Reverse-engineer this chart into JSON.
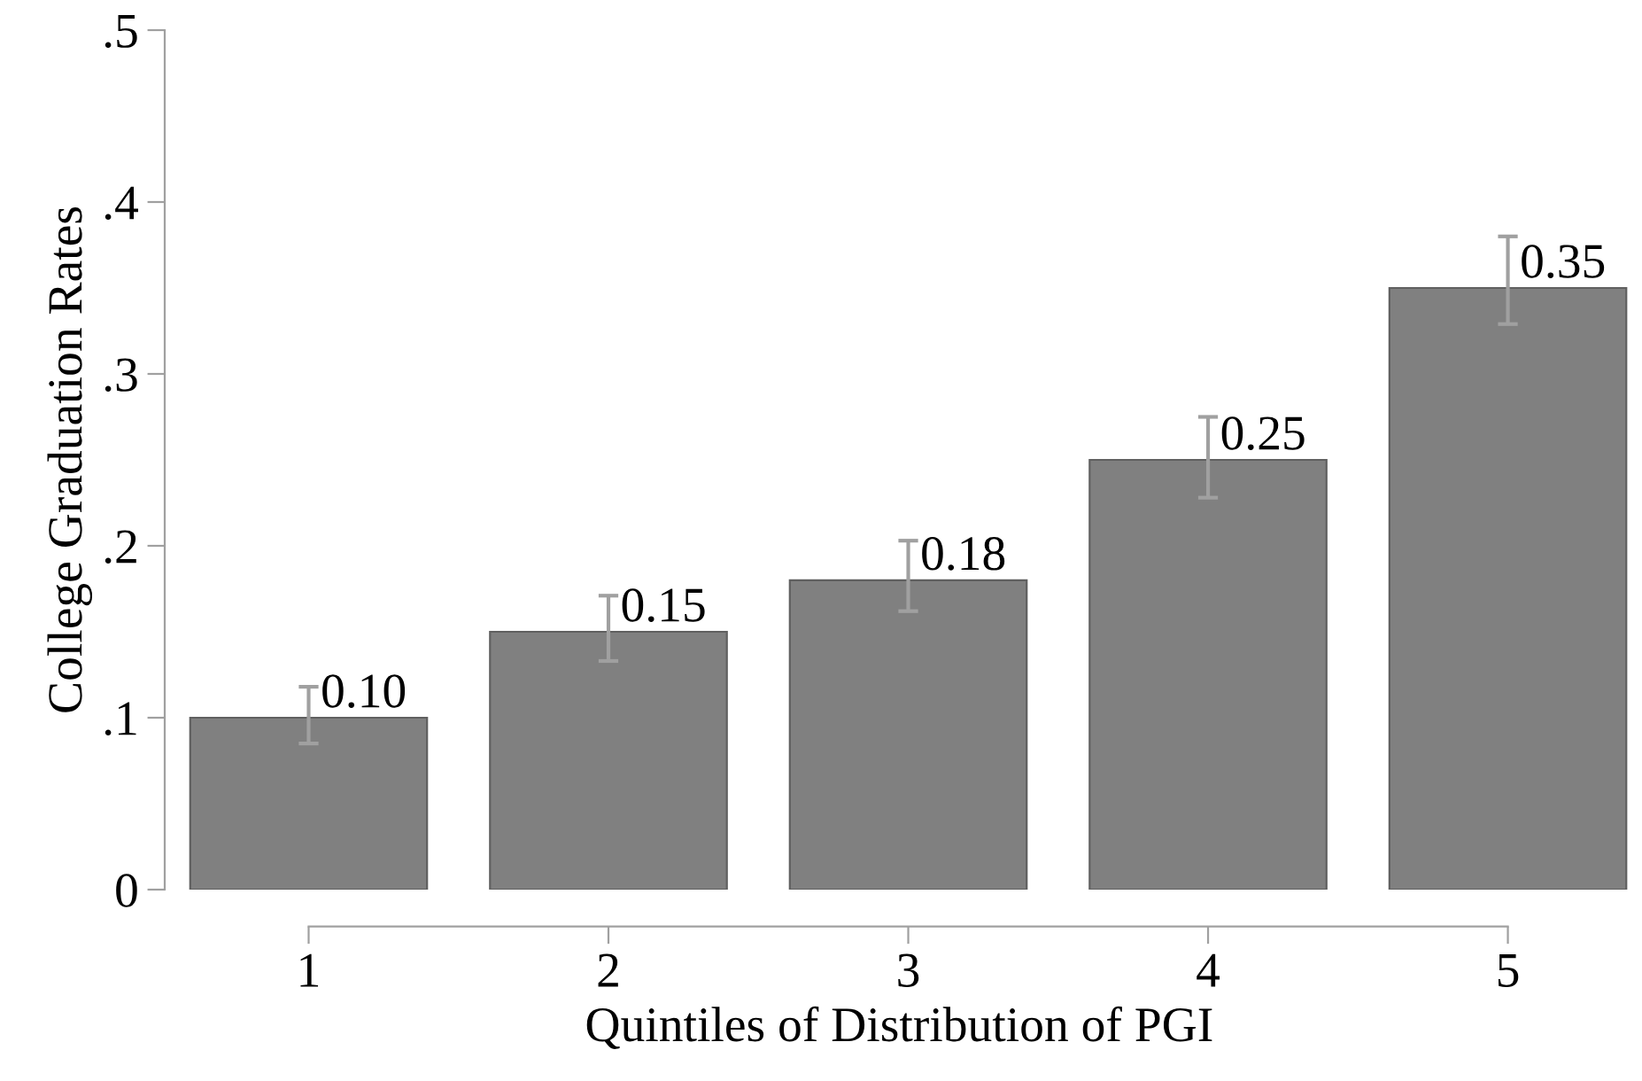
{
  "chart_data": {
    "type": "bar",
    "xlabel": "Quintiles of Distribution of PGI",
    "ylabel": "College Graduation Rates",
    "categories": [
      "1",
      "2",
      "3",
      "4",
      "5"
    ],
    "values": [
      0.1,
      0.15,
      0.18,
      0.25,
      0.35
    ],
    "errors": [
      [
        0.085,
        0.118
      ],
      [
        0.133,
        0.171
      ],
      [
        0.162,
        0.203
      ],
      [
        0.228,
        0.275
      ],
      [
        0.329,
        0.38
      ]
    ],
    "color": "#808080",
    "ylim": [
      0,
      0.5
    ],
    "yticks": [
      0,
      {
        "value": 0.1,
        "label": ".1"
      },
      {
        "value": 0.2,
        "label": ".2"
      },
      {
        "value": 0.3,
        "label": ".3"
      },
      {
        "value": 0.4,
        "label": ".4"
      },
      {
        "value": 0.5,
        "label": ".5"
      }
    ],
    "data_labels": true,
    "value_labels": [
      "0.10",
      "0.15",
      "0.18",
      "0.25",
      "0.35"
    ],
    "grid": false,
    "legend": false
  }
}
